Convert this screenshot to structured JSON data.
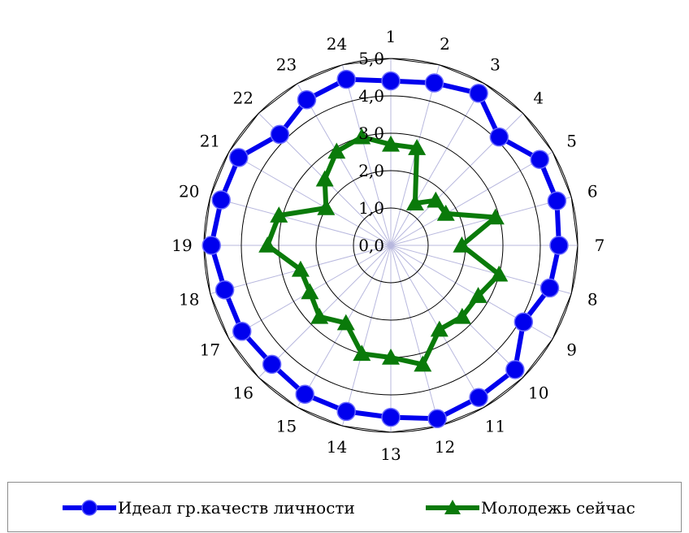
{
  "chart_data": {
    "type": "radar",
    "categories": [
      "1",
      "2",
      "3",
      "4",
      "5",
      "6",
      "7",
      "8",
      "9",
      "10",
      "11",
      "12",
      "13",
      "14",
      "15",
      "16",
      "17",
      "18",
      "19",
      "20",
      "21",
      "22",
      "23",
      "24"
    ],
    "rlim": [
      0,
      5
    ],
    "ticks": [
      "0,0",
      "1,0",
      "2,0",
      "3,0",
      "4,0",
      "5,0"
    ],
    "tick_values": [
      0,
      1,
      2,
      3,
      4,
      5
    ],
    "grid": true,
    "legend": "bottom",
    "series": [
      {
        "name": "Идеал гр.качеств личности",
        "color": "#0000ee",
        "marker": "circle",
        "values": [
          4.4,
          4.5,
          4.7,
          4.1,
          4.6,
          4.6,
          4.5,
          4.4,
          4.1,
          4.7,
          4.7,
          4.8,
          4.6,
          4.6,
          4.6,
          4.5,
          4.6,
          4.6,
          4.8,
          4.7,
          4.7,
          4.2,
          4.5,
          4.6
        ]
      },
      {
        "name": "Молодежь сейчас",
        "color": "#0a7a0a",
        "marker": "triangle",
        "values": [
          2.7,
          2.7,
          1.3,
          1.7,
          1.7,
          2.9,
          1.9,
          3.0,
          2.7,
          2.7,
          2.6,
          3.3,
          3.0,
          3.0,
          2.4,
          2.7,
          2.5,
          2.5,
          3.3,
          3.1,
          2.0,
          2.5,
          2.9,
          3.0
        ]
      }
    ]
  }
}
